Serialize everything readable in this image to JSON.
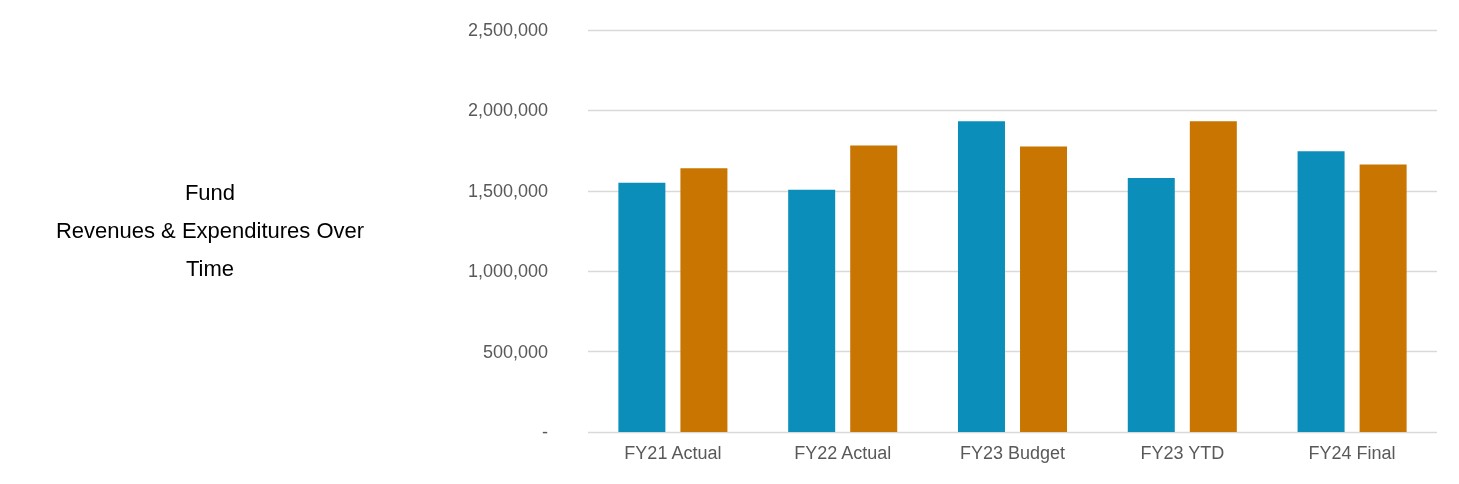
{
  "chart_data": {
    "type": "bar",
    "title": "Fund\nRevenues & Expenditures Over\nTime",
    "categories": [
      "FY21 Actual",
      "FY22 Actual",
      "FY23 Budget",
      "FY23 YTD",
      "FY24 Final"
    ],
    "series": [
      {
        "color": "#0b8fba",
        "values": [
          1550000,
          1507000,
          1932000,
          1579000,
          1746000
        ]
      },
      {
        "color": "#c87502",
        "values": [
          1640000,
          1782000,
          1776000,
          1932000,
          1663000
        ]
      }
    ],
    "ylim": [
      0,
      2500000
    ],
    "yticks": [
      {
        "value": 0,
        "label": "-"
      },
      {
        "value": 500000,
        "label": "500,000"
      },
      {
        "value": 1000000,
        "label": "1,000,000"
      },
      {
        "value": 1500000,
        "label": "1,500,000"
      },
      {
        "value": 2000000,
        "label": "2,000,000"
      },
      {
        "value": 2500000,
        "label": "2,500,000"
      }
    ],
    "grid": "y"
  }
}
